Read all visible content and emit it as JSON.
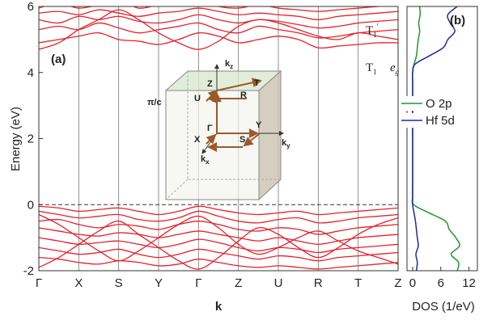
{
  "chart_data": [
    {
      "type": "line",
      "panel_label": "(a)",
      "ylabel": "Energy (eV)",
      "xlabel": "k",
      "x": [
        0,
        0.5,
        1,
        1.5,
        2,
        2.5,
        3,
        3.5,
        4,
        4.5,
        5,
        5.5,
        6,
        6.5,
        7,
        7.5,
        8,
        8.5,
        9
      ],
      "xlim": [
        0,
        9
      ],
      "xticks": [
        {
          "value": 0,
          "label": "Γ"
        },
        {
          "value": 1,
          "label": "X"
        },
        {
          "value": 2,
          "label": "S"
        },
        {
          "value": 3,
          "label": "Y"
        },
        {
          "value": 4,
          "label": "Γ"
        },
        {
          "value": 5,
          "label": "Z"
        },
        {
          "value": 6,
          "label": "U"
        },
        {
          "value": 7,
          "label": "R"
        },
        {
          "value": 8,
          "label": "T"
        },
        {
          "value": 9,
          "label": "Z"
        }
      ],
      "ylim": [
        -2,
        6
      ],
      "yticks": [
        -2,
        0,
        2,
        4,
        6
      ],
      "grid": true,
      "fermi_level": 0,
      "color": "#e8202a",
      "annotations": [
        {
          "main": "T",
          "sub": "1",
          "sup": "′"
        },
        {
          "main": "T",
          "sub": "1"
        },
        {
          "main": "e",
          "sub": "g"
        }
      ],
      "series": [
        {
          "values": [
            4.9,
            5.0,
            5.1,
            5.2,
            5.0,
            4.95,
            4.85,
            5.0,
            5.2,
            5.1,
            4.9,
            5.0,
            5.1,
            5.0,
            4.75,
            4.8,
            4.85,
            4.9,
            4.9
          ]
        },
        {
          "values": [
            5.3,
            5.4,
            5.3,
            5.5,
            5.35,
            5.2,
            5.3,
            5.4,
            5.5,
            5.3,
            5.2,
            5.4,
            5.3,
            5.2,
            5.05,
            5.1,
            5.2,
            5.25,
            5.3
          ]
        },
        {
          "values": [
            5.6,
            5.5,
            5.7,
            5.6,
            5.7,
            5.55,
            5.5,
            5.6,
            5.75,
            5.6,
            5.5,
            5.6,
            5.55,
            5.45,
            5.35,
            5.4,
            5.5,
            5.55,
            5.6
          ]
        },
        {
          "values": [
            5.8,
            5.85,
            5.75,
            5.9,
            5.8,
            5.7,
            5.8,
            5.85,
            5.95,
            5.85,
            5.75,
            5.8,
            5.75,
            5.7,
            5.6,
            5.7,
            5.75,
            5.8,
            5.85
          ]
        },
        {
          "values": [
            5.95,
            6.1,
            5.95,
            6.05,
            6.2,
            5.95,
            6.05,
            6.1,
            6.2,
            6.0,
            5.95,
            6.05,
            5.95,
            5.9,
            5.85,
            5.9,
            5.95,
            6.0,
            6.05
          ]
        },
        {
          "values": [
            4.7,
            4.9,
            5.3,
            5.6,
            5.9,
            5.6,
            5.2,
            4.9,
            4.7,
            4.95,
            5.4,
            5.6,
            5.5,
            5.3,
            5.1,
            5.0,
            5.2,
            5.1,
            5.0
          ]
        },
        {
          "values": [
            -0.05,
            -0.1,
            -0.2,
            -0.15,
            -0.1,
            -0.2,
            -0.3,
            -0.2,
            -0.05,
            -0.15,
            -0.25,
            -0.3,
            -0.25,
            -0.2,
            -0.3,
            -0.25,
            -0.2,
            -0.15,
            -0.1
          ]
        },
        {
          "values": [
            -0.2,
            -0.3,
            -0.4,
            -0.35,
            -0.3,
            -0.45,
            -0.5,
            -0.4,
            -0.2,
            -0.35,
            -0.5,
            -0.55,
            -0.45,
            -0.4,
            -0.55,
            -0.5,
            -0.4,
            -0.35,
            -0.3
          ]
        },
        {
          "values": [
            -0.5,
            -0.45,
            -0.6,
            -0.7,
            -0.6,
            -0.65,
            -0.75,
            -0.6,
            -0.5,
            -0.6,
            -0.75,
            -0.8,
            -0.7,
            -0.75,
            -0.9,
            -0.8,
            -0.7,
            -0.65,
            -0.6
          ]
        },
        {
          "values": [
            -0.7,
            -0.8,
            -0.9,
            -0.95,
            -0.85,
            -0.9,
            -1.0,
            -0.9,
            -0.8,
            -0.9,
            -1.0,
            -1.1,
            -1.0,
            -1.1,
            -1.2,
            -1.1,
            -1.0,
            -0.95,
            -0.9
          ]
        },
        {
          "values": [
            -1.0,
            -1.1,
            -1.2,
            -1.15,
            -1.1,
            -1.2,
            -1.3,
            -1.2,
            -1.05,
            -1.15,
            -1.3,
            -1.4,
            -1.3,
            -1.35,
            -1.45,
            -1.35,
            -1.3,
            -1.25,
            -1.2
          ]
        },
        {
          "values": [
            -1.3,
            -1.4,
            -1.5,
            -1.45,
            -1.35,
            -1.5,
            -1.6,
            -1.5,
            -1.35,
            -1.45,
            -1.55,
            -1.65,
            -1.55,
            -1.6,
            -1.7,
            -1.6,
            -1.55,
            -1.5,
            -1.45
          ]
        },
        {
          "values": [
            -1.6,
            -1.65,
            -1.75,
            -1.8,
            -1.7,
            -1.75,
            -1.85,
            -1.8,
            -1.65,
            -1.75,
            -1.85,
            -1.9,
            -1.85,
            -1.9,
            -1.95,
            -1.9,
            -1.85,
            -1.8,
            -1.75
          ]
        },
        {
          "values": [
            -0.3,
            -0.6,
            -1.0,
            -1.4,
            -1.7,
            -1.4,
            -1.0,
            -0.6,
            -0.35,
            -0.7,
            -1.2,
            -1.5,
            -1.3,
            -1.0,
            -0.8,
            -1.1,
            -1.4,
            -1.6,
            -1.8
          ]
        },
        {
          "values": [
            -1.9,
            -1.6,
            -1.2,
            -0.8,
            -0.5,
            -0.9,
            -1.3,
            -1.7,
            -1.95,
            -1.6,
            -1.1,
            -0.7,
            -0.9,
            -1.3,
            -1.6,
            -1.3,
            -0.9,
            -0.6,
            -0.4
          ]
        }
      ],
      "inset": {
        "points": [
          "Z",
          "T",
          "U",
          "R",
          "Γ",
          "Y",
          "X",
          "S"
        ],
        "boundary": "π/c",
        "axes": [
          {
            "main": "k",
            "sub": "z"
          },
          {
            "main": "k",
            "sub": "y"
          },
          {
            "main": "k",
            "sub": "x"
          }
        ]
      }
    },
    {
      "type": "line",
      "orientation": "horizontal",
      "panel_label": "(b)",
      "xlabel": "DOS (1/eV)",
      "x": [
        -2,
        -1.75,
        -1.5,
        -1.25,
        -1,
        -0.75,
        -0.5,
        -0.25,
        0,
        0.25,
        0.5,
        0.75,
        1,
        1.25,
        1.5,
        1.75,
        2,
        2.25,
        2.5,
        2.75,
        3,
        3.25,
        3.5,
        3.75,
        4,
        4.25,
        4.5,
        4.75,
        5,
        5.25,
        5.5,
        5.75,
        6
      ],
      "ylim": [
        -2,
        6
      ],
      "xlim": [
        -1.2,
        13.8
      ],
      "xticks": [
        0,
        6,
        12
      ],
      "series": [
        {
          "name": "O 2p",
          "color": "#1f9a2a",
          "values": [
            9.5,
            9.8,
            8.2,
            10,
            9.2,
            7.8,
            7,
            3.5,
            0.2,
            0,
            0,
            0,
            0,
            0,
            0,
            0,
            0,
            0,
            0,
            0,
            0,
            0,
            0,
            0,
            0,
            0.3,
            0.8,
            1,
            1.2,
            1.5,
            1.3,
            1.6,
            1.5
          ]
        },
        {
          "name": "Hf 5d",
          "color": "#1f28a0",
          "values": [
            0.8,
            1,
            0.7,
            1.2,
            1,
            0.8,
            0.6,
            0.3,
            0,
            0,
            0,
            0,
            0,
            0,
            0,
            0,
            0,
            0,
            0,
            0,
            0,
            0,
            0,
            0,
            0,
            0.5,
            3.5,
            6.5,
            7.5,
            9,
            8,
            7.5,
            9.5
          ]
        }
      ]
    }
  ]
}
